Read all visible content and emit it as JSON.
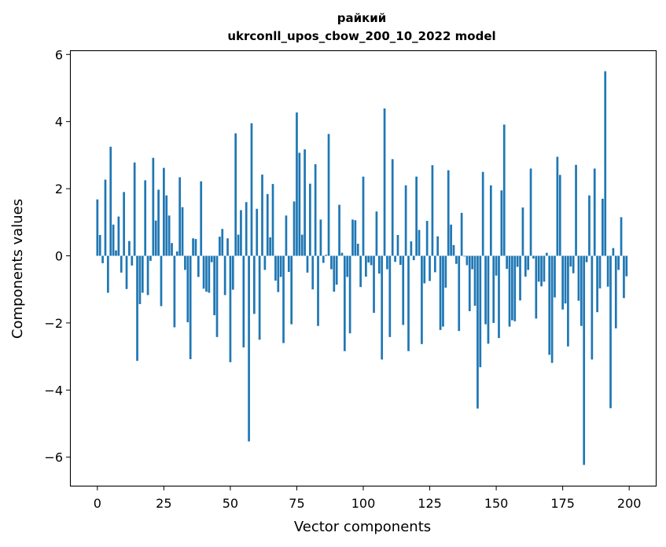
{
  "chart_data": {
    "type": "bar",
    "title": "райкий",
    "subtitle": "ukrconll_upos_cbow_200_10_2022 model",
    "xlabel": "Vector components",
    "ylabel": "Components values",
    "xlim": [
      -10,
      210
    ],
    "ylim": [
      -6.85,
      6.1
    ],
    "xticks": [
      0,
      25,
      50,
      75,
      100,
      125,
      150,
      175,
      200
    ],
    "yticks": [
      -6,
      -4,
      -2,
      0,
      2,
      4,
      6
    ],
    "bar_color": "#1f77b4",
    "grid": false,
    "x": [
      0,
      1,
      2,
      3,
      4,
      5,
      6,
      7,
      8,
      9,
      10,
      11,
      12,
      13,
      14,
      15,
      16,
      17,
      18,
      19,
      20,
      21,
      22,
      23,
      24,
      25,
      26,
      27,
      28,
      29,
      30,
      31,
      32,
      33,
      34,
      35,
      36,
      37,
      38,
      39,
      40,
      41,
      42,
      43,
      44,
      45,
      46,
      47,
      48,
      49,
      50,
      51,
      52,
      53,
      54,
      55,
      56,
      57,
      58,
      59,
      60,
      61,
      62,
      63,
      64,
      65,
      66,
      67,
      68,
      69,
      70,
      71,
      72,
      73,
      74,
      75,
      76,
      77,
      78,
      79,
      80,
      81,
      82,
      83,
      84,
      85,
      86,
      87,
      88,
      89,
      90,
      91,
      92,
      93,
      94,
      95,
      96,
      97,
      98,
      99,
      100,
      101,
      102,
      103,
      104,
      105,
      106,
      107,
      108,
      109,
      110,
      111,
      112,
      113,
      114,
      115,
      116,
      117,
      118,
      119,
      120,
      121,
      122,
      123,
      124,
      125,
      126,
      127,
      128,
      129,
      130,
      131,
      132,
      133,
      134,
      135,
      136,
      137,
      138,
      139,
      140,
      141,
      142,
      143,
      144,
      145,
      146,
      147,
      148,
      149,
      150,
      151,
      152,
      153,
      154,
      155,
      156,
      157,
      158,
      159,
      160,
      161,
      162,
      163,
      164,
      165,
      166,
      167,
      168,
      169,
      170,
      171,
      172,
      173,
      174,
      175,
      176,
      177,
      178,
      179,
      180,
      181,
      182,
      183,
      184,
      185,
      186,
      187,
      188,
      189,
      190,
      191,
      192,
      193,
      194,
      195,
      196,
      197,
      198,
      199
    ],
    "values": [
      1.68,
      0.62,
      -0.22,
      2.27,
      -1.1,
      3.25,
      0.93,
      0.16,
      1.17,
      -0.5,
      1.9,
      -0.99,
      0.44,
      -0.29,
      2.78,
      -3.13,
      -1.44,
      -1.1,
      2.25,
      -1.17,
      -0.15,
      2.92,
      1.05,
      1.97,
      -1.5,
      2.62,
      1.8,
      1.2,
      0.38,
      -2.13,
      0.13,
      2.34,
      1.45,
      -0.42,
      -1.98,
      -3.08,
      0.52,
      0.5,
      -0.63,
      2.22,
      -0.98,
      -1.07,
      -1.1,
      -0.19,
      -1.77,
      -2.42,
      0.57,
      0.8,
      -1.17,
      0.52,
      -3.17,
      -1.01,
      3.65,
      0.63,
      1.36,
      -2.73,
      1.6,
      -5.53,
      3.95,
      -1.73,
      1.4,
      -2.5,
      2.42,
      -0.42,
      1.84,
      0.55,
      2.14,
      -0.74,
      -1.08,
      -0.63,
      -2.6,
      1.2,
      -0.48,
      -2.04,
      1.62,
      4.27,
      3.07,
      0.63,
      3.17,
      -0.5,
      2.15,
      -1.0,
      2.73,
      -2.09,
      1.08,
      -0.21,
      0.03,
      3.63,
      -0.4,
      -1.07,
      -0.86,
      1.52,
      0.09,
      -2.84,
      -0.63,
      -2.31,
      1.08,
      1.06,
      0.36,
      -0.93,
      2.36,
      -0.62,
      -0.2,
      -0.28,
      -1.7,
      1.32,
      -0.53,
      -3.09,
      4.39,
      -0.4,
      -2.42,
      2.88,
      -0.18,
      0.62,
      -0.27,
      -2.06,
      2.1,
      -2.84,
      0.43,
      -0.13,
      2.36,
      0.77,
      -2.63,
      -0.82,
      1.04,
      -0.75,
      2.7,
      -0.49,
      0.58,
      -2.21,
      -2.11,
      -0.95,
      2.55,
      0.93,
      0.32,
      -0.24,
      -2.24,
      1.28,
      -0.02,
      -0.28,
      -1.65,
      -0.4,
      -1.49,
      -4.55,
      -3.32,
      2.5,
      -2.04,
      -2.62,
      2.1,
      -2.0,
      -0.59,
      -2.45,
      1.95,
      3.91,
      -0.39,
      -2.11,
      -1.92,
      -1.95,
      -0.33,
      -1.33,
      1.44,
      -0.62,
      -0.42,
      2.6,
      -0.08,
      -1.87,
      -0.77,
      -0.91,
      -0.77,
      0.09,
      -2.95,
      -3.19,
      -1.24,
      2.95,
      2.41,
      -1.6,
      -1.42,
      -2.7,
      -0.32,
      -0.52,
      2.71,
      -1.34,
      -2.09,
      -6.23,
      -0.19,
      1.8,
      -3.09,
      2.6,
      -1.68,
      -0.97,
      1.7,
      5.5,
      -0.92,
      -4.54,
      0.23,
      -2.16,
      -0.42,
      1.15,
      -1.26,
      -0.61
    ]
  }
}
